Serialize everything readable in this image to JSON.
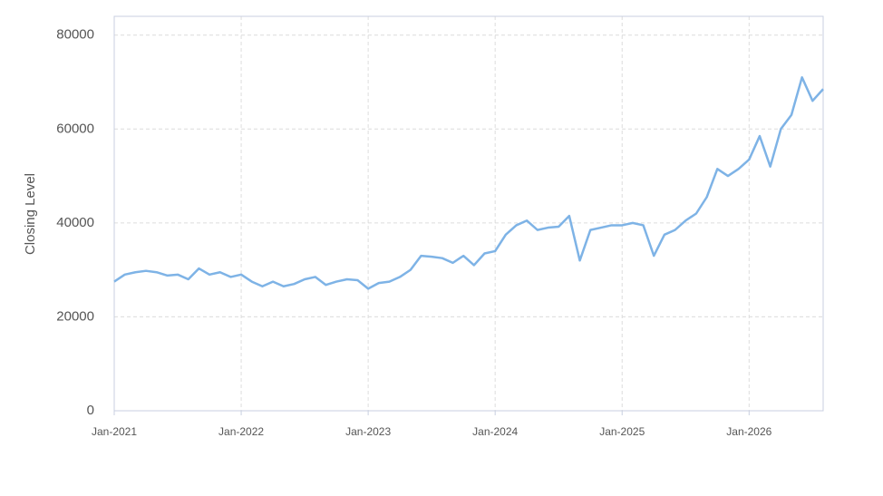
{
  "chart_data": {
    "type": "line",
    "y_label": "Closing Level",
    "x": [
      "2021-01",
      "2021-02",
      "2021-03",
      "2021-04",
      "2021-05",
      "2021-06",
      "2021-07",
      "2021-08",
      "2021-09",
      "2021-10",
      "2021-11",
      "2021-12",
      "2022-01",
      "2022-02",
      "2022-03",
      "2022-04",
      "2022-05",
      "2022-06",
      "2022-07",
      "2022-08",
      "2022-09",
      "2022-10",
      "2022-11",
      "2022-12",
      "2023-01",
      "2023-02",
      "2023-03",
      "2023-04",
      "2023-05",
      "2023-06",
      "2023-07",
      "2023-08",
      "2023-09",
      "2023-10",
      "2023-11",
      "2023-12",
      "2024-01",
      "2024-02",
      "2024-03",
      "2024-04",
      "2024-05",
      "2024-06",
      "2024-07",
      "2024-08",
      "2024-09",
      "2024-10",
      "2024-11",
      "2024-12",
      "2025-01",
      "2025-02",
      "2025-03",
      "2025-04",
      "2025-05",
      "2025-06",
      "2025-07",
      "2025-08",
      "2025-09",
      "2025-10",
      "2025-11",
      "2025-12",
      "2026-01",
      "2026-02",
      "2026-03",
      "2026-04",
      "2026-05",
      "2026-06",
      "2026-07",
      "2026-08"
    ],
    "series": [
      {
        "name": "Closing Level",
        "color": "#7eb3e6",
        "values": [
          27500,
          29000,
          29500,
          29800,
          29500,
          28800,
          29000,
          28000,
          30300,
          29000,
          29500,
          28500,
          29000,
          27500,
          26500,
          27500,
          26500,
          27000,
          28000,
          28500,
          26800,
          27500,
          28000,
          27800,
          26000,
          27200,
          27500,
          28500,
          30000,
          33000,
          32800,
          32500,
          31500,
          33000,
          31000,
          33500,
          34000,
          37500,
          39500,
          40500,
          38500,
          39000,
          39200,
          41500,
          32000,
          38500,
          39000,
          39500,
          39500,
          40000,
          39500,
          33000,
          37500,
          38500,
          40500,
          42000,
          45500,
          51500,
          50000,
          51500,
          53500,
          58500,
          52000,
          60000,
          63000,
          71000,
          66000,
          68500
        ]
      }
    ],
    "xlim": [
      "2021-01",
      "2026-08"
    ],
    "xticks": [
      {
        "value": "2021-01",
        "label": "Jan-2021"
      },
      {
        "value": "2022-01",
        "label": "Jan-2022"
      },
      {
        "value": "2023-01",
        "label": "Jan-2023"
      },
      {
        "value": "2024-01",
        "label": "Jan-2024"
      },
      {
        "value": "2025-01",
        "label": "Jan-2025"
      },
      {
        "value": "2026-01",
        "label": "Jan-2026"
      }
    ],
    "ylim": [
      0,
      84000
    ],
    "yticks": [
      0,
      20000,
      40000,
      60000,
      80000
    ],
    "grid": true
  }
}
